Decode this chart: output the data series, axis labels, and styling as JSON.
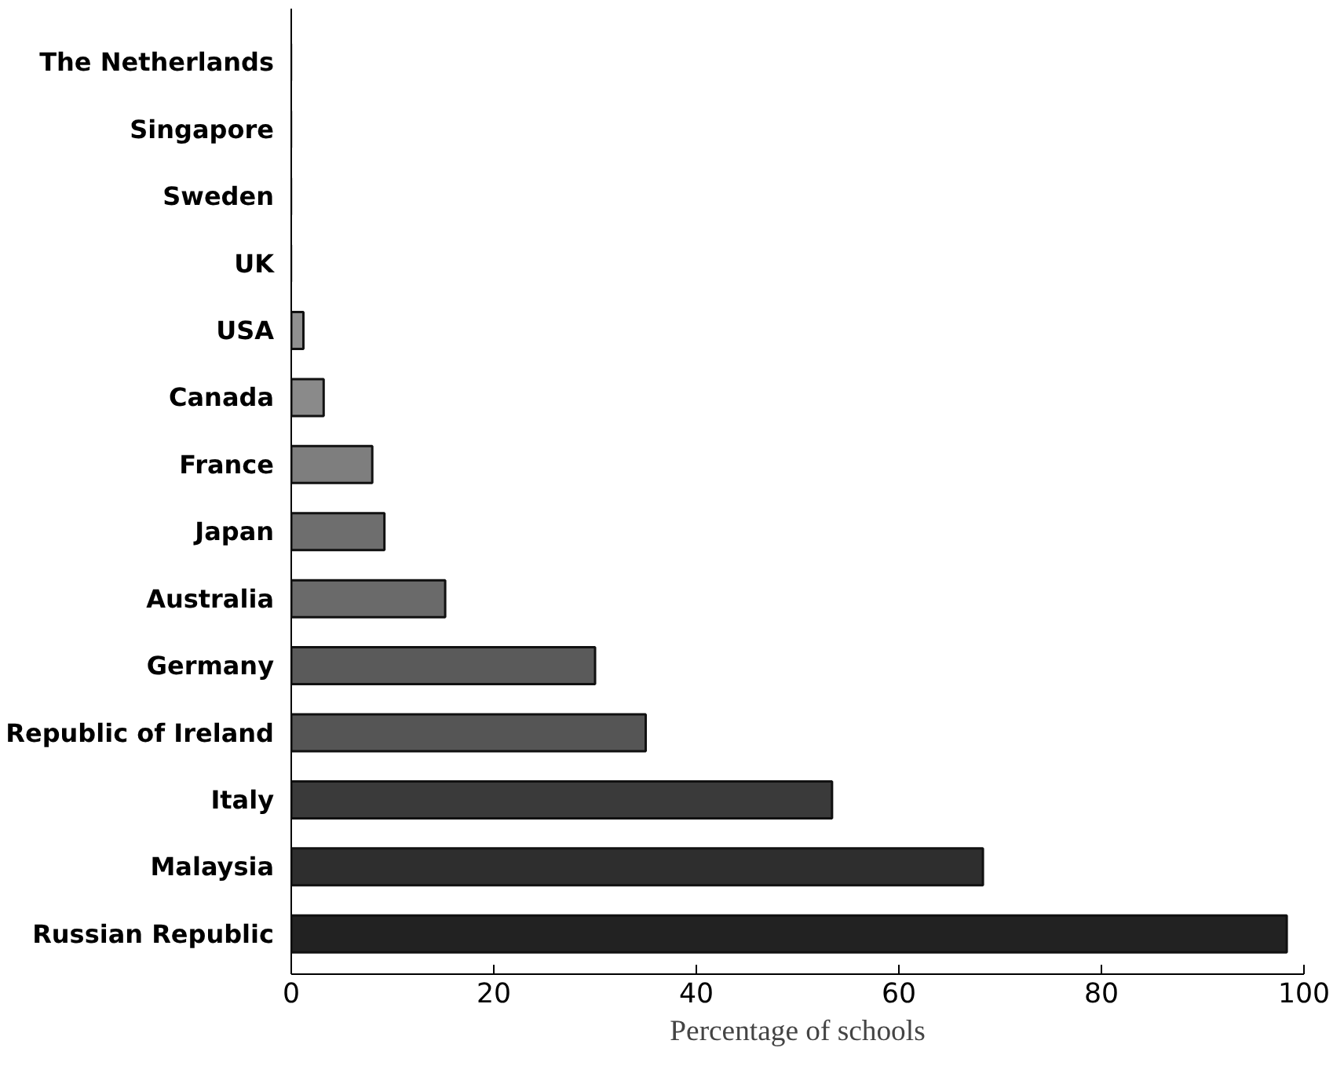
{
  "chart_data": {
    "type": "bar",
    "orientation": "horizontal",
    "xlabel": "Percentage of schools",
    "categories": [
      "The Netherlands",
      "Singapore",
      "Sweden",
      "UK",
      "USA",
      "Canada",
      "France",
      "Japan",
      "Australia",
      "Germany",
      "Republic of Ireland",
      "Italy",
      "Malaysia",
      "Russian Republic"
    ],
    "values": [
      0,
      0,
      0,
      0,
      1.2,
      3.2,
      8,
      9.2,
      15.2,
      30,
      35,
      53.4,
      68.3,
      98.3
    ],
    "colors": [
      "#a0a0a0",
      "#a0a0a0",
      "#a0a0a0",
      "#a0a0a0",
      "#909090",
      "#8a8a8a",
      "#7e7e7e",
      "#6e6e6e",
      "#6a6a6a",
      "#5a5a5a",
      "#555555",
      "#3a3a3a",
      "#2e2e2e",
      "#222222"
    ],
    "xlim": [
      0,
      100
    ],
    "xticks": [
      0,
      20,
      40,
      60,
      80,
      100
    ],
    "grid": false
  }
}
